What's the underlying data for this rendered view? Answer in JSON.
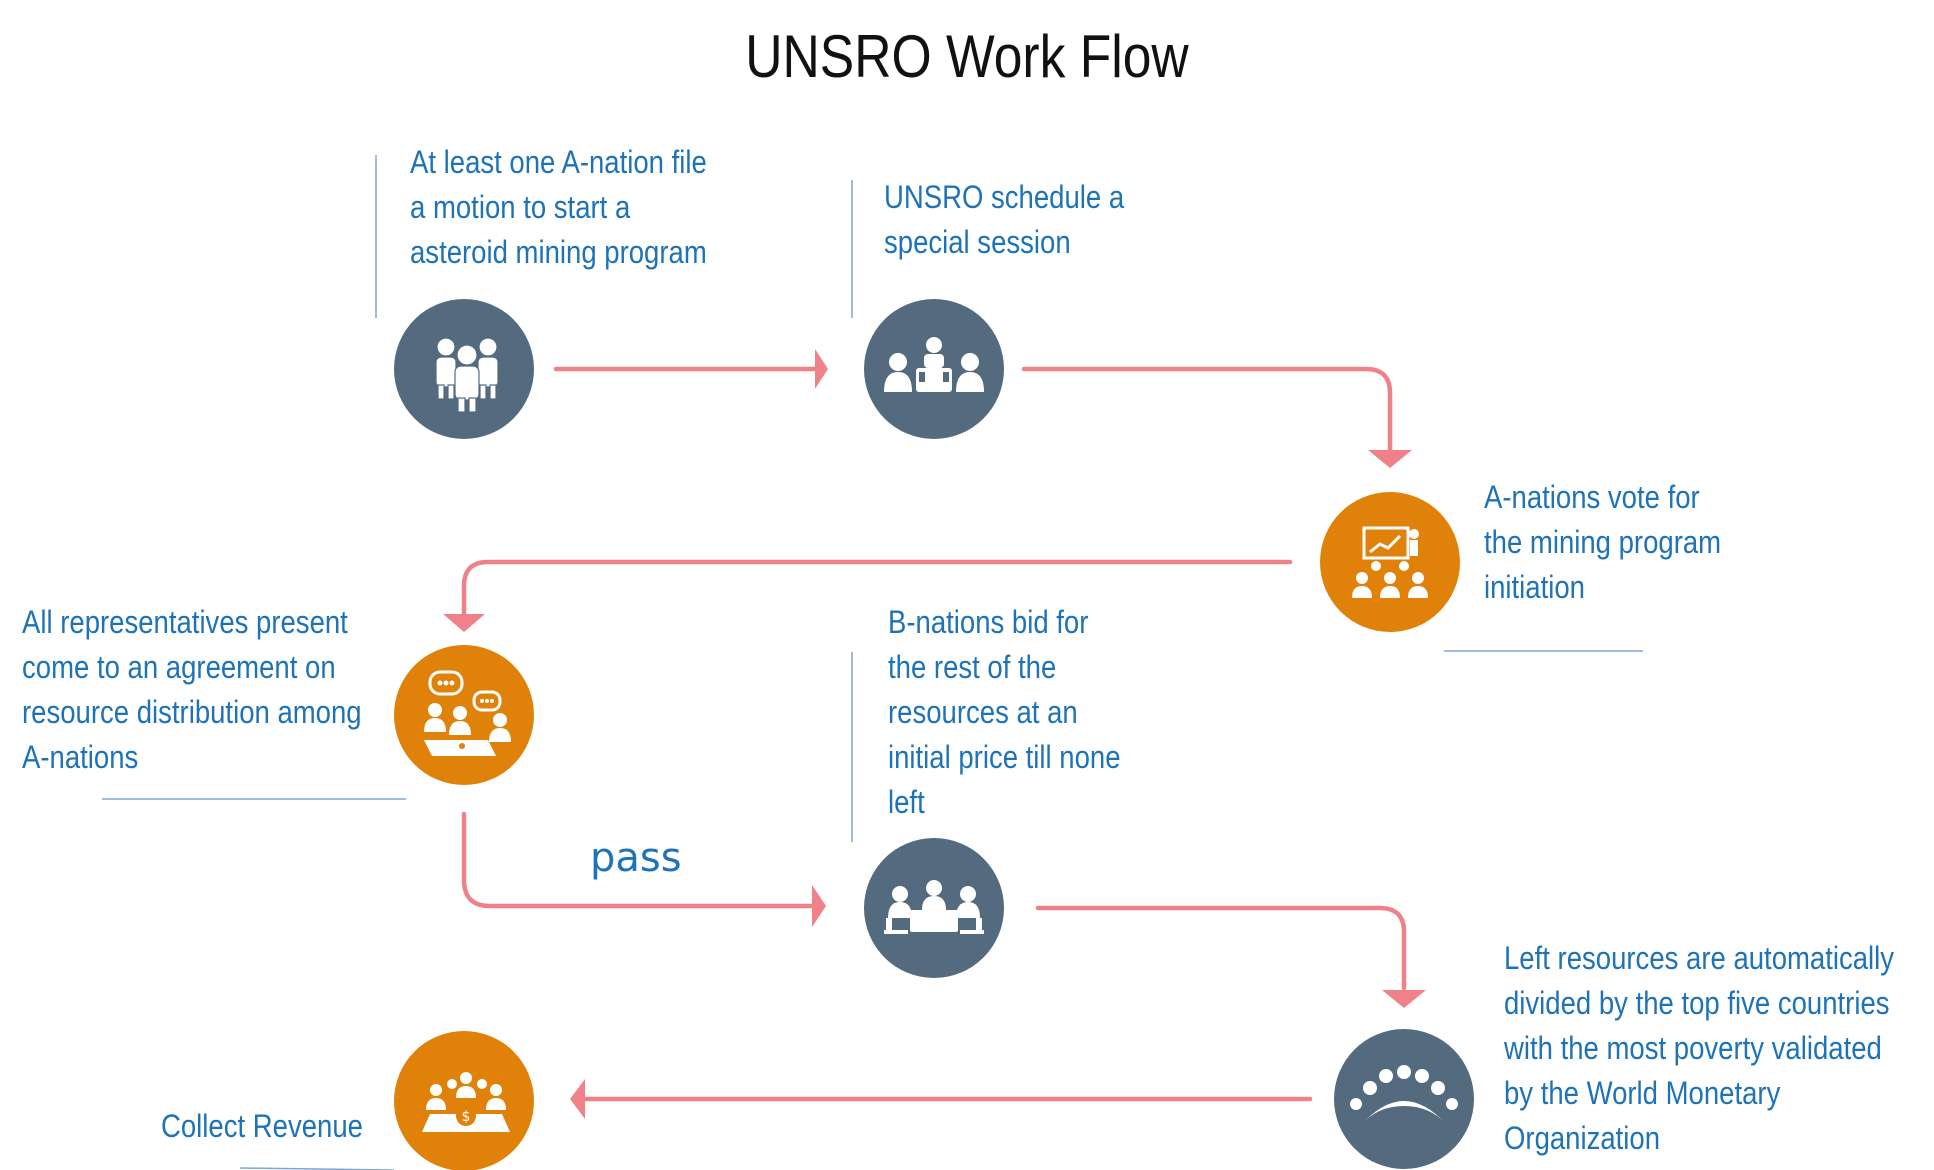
{
  "title": "UNSRO Work Flow",
  "colors": {
    "slate": "#546a7e",
    "orange": "#e08109",
    "arrow": "#ef8288",
    "text": "#1e73b8",
    "rule": "#7fa6cf"
  },
  "steps": [
    {
      "id": "motion",
      "icon": "team-of-people-icon",
      "color": "slate",
      "lines": [
        "At least one A-nation file",
        "a motion to start a",
        "asteroid mining program"
      ]
    },
    {
      "id": "session",
      "icon": "meeting-table-icon",
      "color": "slate",
      "lines": [
        "UNSRO schedule a",
        "special session"
      ]
    },
    {
      "id": "vote",
      "icon": "presentation-audience-icon",
      "color": "orange",
      "lines": [
        "A-nations vote for",
        "the mining program",
        "initiation"
      ]
    },
    {
      "id": "agreement",
      "icon": "discussion-chat-icon",
      "color": "orange",
      "lines": [
        "All representatives present",
        "come to an agreement on",
        "resource distribution among",
        "A-nations"
      ]
    },
    {
      "id": "bid",
      "icon": "negotiation-table-icon",
      "color": "slate",
      "lines": [
        "B-nations bid for",
        "the rest of the",
        "resources at an",
        "initial price till none",
        "left"
      ]
    },
    {
      "id": "divide",
      "icon": "round-table-group-icon",
      "color": "slate",
      "lines": [
        "Left resources are automatically",
        "divided by the top five countries",
        "with the most poverty validated",
        "by the World Monetary",
        "Organization"
      ]
    },
    {
      "id": "revenue",
      "icon": "money-table-icon",
      "color": "orange",
      "lines": [
        "Collect Revenue"
      ]
    }
  ],
  "pass_label": "pass"
}
